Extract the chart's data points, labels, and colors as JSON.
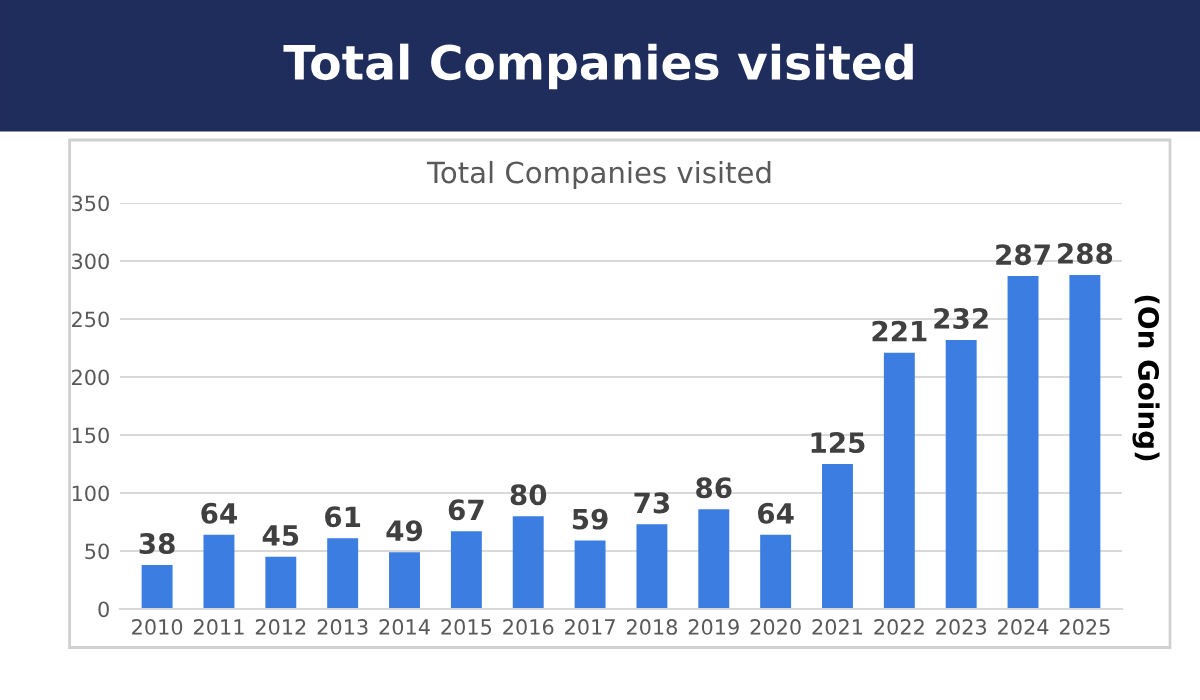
{
  "chart_data": {
    "type": "bar",
    "title": "Total Companies visited",
    "subtitle": "Total Companies visited",
    "categories": [
      "2010",
      "2011",
      "2012",
      "2013",
      "2014",
      "2015",
      "2016",
      "2017",
      "2018",
      "2019",
      "2020",
      "2021",
      "2022",
      "2023",
      "2024",
      "2025"
    ],
    "values": [
      38,
      64,
      45,
      61,
      49,
      67,
      80,
      59,
      73,
      86,
      64,
      125,
      221,
      232,
      287,
      288
    ],
    "color": "#3b7de0",
    "ylim": [
      0,
      350
    ],
    "yticks": [
      0,
      50,
      100,
      150,
      200,
      250,
      300,
      350
    ],
    "grid": "y",
    "data_labels": true,
    "annotations": [
      "(On Going)"
    ]
  }
}
